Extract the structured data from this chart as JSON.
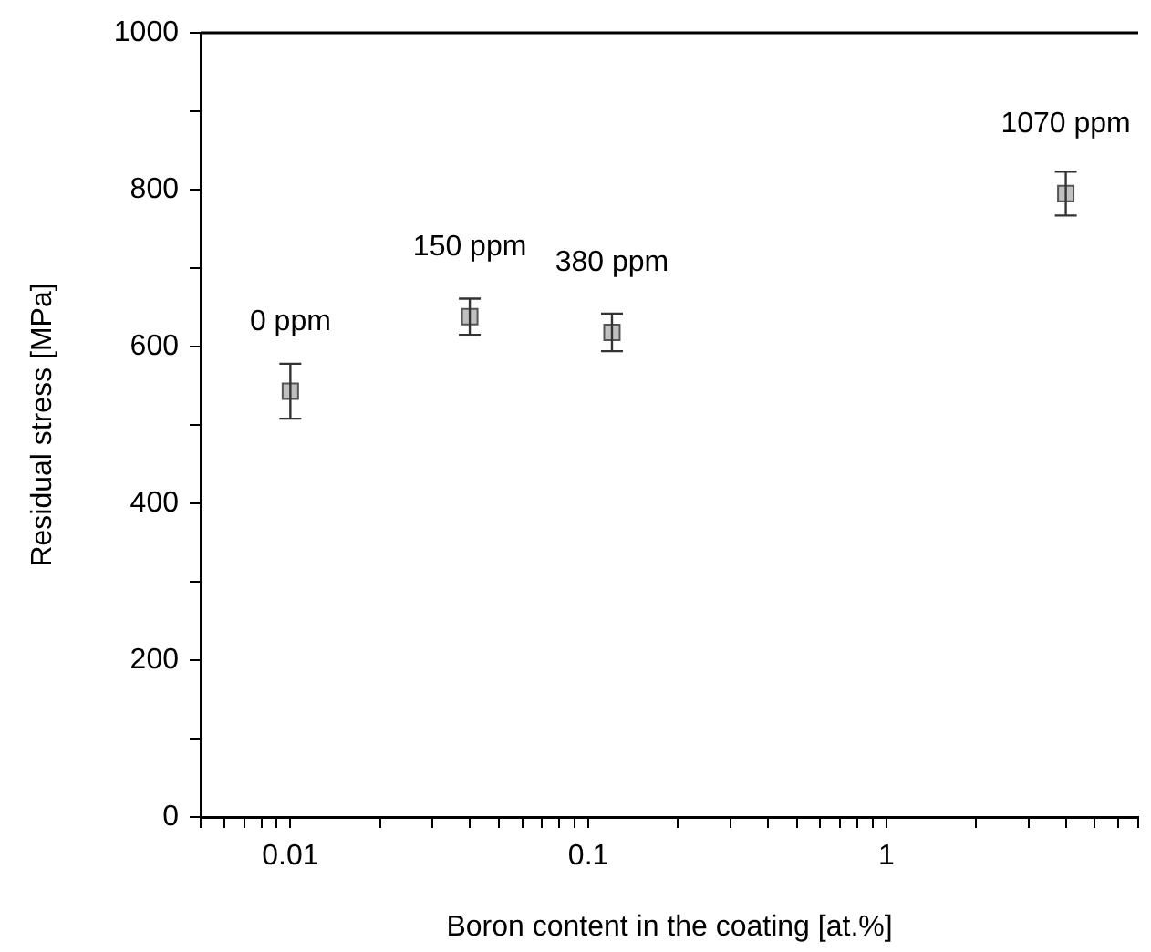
{
  "chart_data": {
    "type": "scatter",
    "xlabel": "Boron content in the coating [at.%]",
    "ylabel": "Residual stress [MPa]",
    "log": "x",
    "xlim": [
      0.005,
      7
    ],
    "xticks": [
      {
        "value": 0.005,
        "label": null
      },
      {
        "value": 0.006,
        "label": null
      },
      {
        "value": 0.007,
        "label": null
      },
      {
        "value": 0.008,
        "label": null
      },
      {
        "value": 0.009,
        "label": null
      },
      0.01,
      {
        "value": 0.02,
        "label": null
      },
      {
        "value": 0.03,
        "label": null
      },
      {
        "value": 0.04,
        "label": null
      },
      {
        "value": 0.05,
        "label": null
      },
      {
        "value": 0.06,
        "label": null
      },
      {
        "value": 0.07,
        "label": null
      },
      {
        "value": 0.08,
        "label": null
      },
      {
        "value": 0.09,
        "label": null
      },
      0.1,
      {
        "value": 0.2,
        "label": null
      },
      {
        "value": 0.3,
        "label": null
      },
      {
        "value": 0.4,
        "label": null
      },
      {
        "value": 0.5,
        "label": null
      },
      {
        "value": 0.6,
        "label": null
      },
      {
        "value": 0.7,
        "label": null
      },
      {
        "value": 0.8,
        "label": null
      },
      {
        "value": 0.9,
        "label": null
      },
      1,
      {
        "value": 2,
        "label": null
      },
      {
        "value": 3,
        "label": null
      },
      {
        "value": 4,
        "label": null
      },
      {
        "value": 5,
        "label": null
      },
      {
        "value": 6,
        "label": null
      },
      {
        "value": 7,
        "label": null
      }
    ],
    "ylim": [
      0,
      1000
    ],
    "yticks": [
      0,
      {
        "value": 100,
        "label": null
      },
      200,
      {
        "value": 300,
        "label": null
      },
      400,
      {
        "value": 500,
        "label": null
      },
      600,
      {
        "value": 700,
        "label": null
      },
      800,
      {
        "value": 900,
        "label": null
      },
      1000
    ],
    "x": [
      0.01,
      0.04,
      0.12,
      4
    ],
    "series": [
      {
        "color": "#c0c0c0",
        "values": [
          543,
          638,
          618,
          795
        ],
        "errors": [
          35,
          23,
          24,
          28
        ]
      }
    ],
    "marker": "square",
    "grid": false,
    "legend": false,
    "annotations": [
      {
        "text": "0 ppm",
        "x": 0.01,
        "y": 543
      },
      {
        "text": "150 ppm",
        "x": 0.04,
        "y": 638
      },
      {
        "text": "380 ppm",
        "x": 0.12,
        "y": 618
      },
      {
        "text": "1070 ppm",
        "x": 4,
        "y": 795
      }
    ]
  }
}
